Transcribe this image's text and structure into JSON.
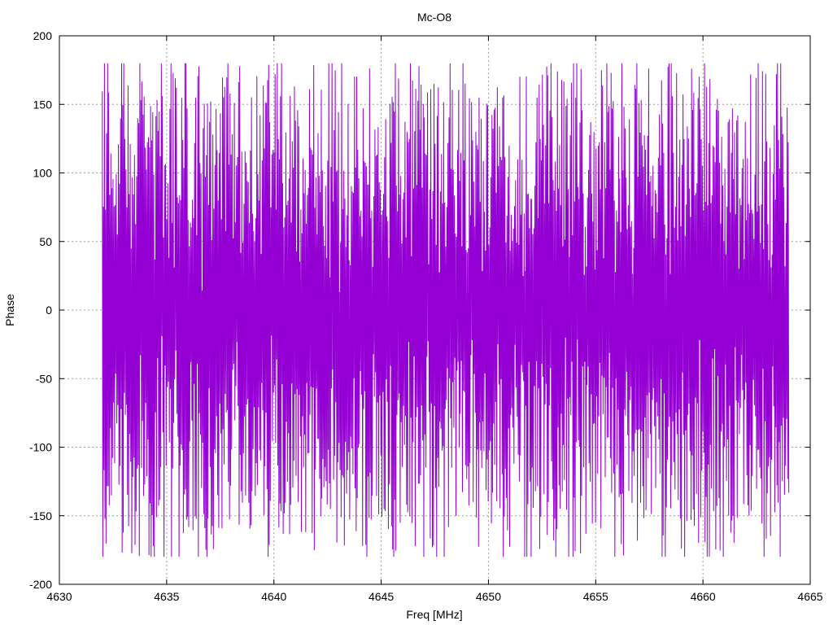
{
  "chart_data": {
    "type": "line",
    "title": "Mc-O8",
    "xlabel": "Freq [MHz]",
    "ylabel": "Phase",
    "xlim": [
      4630,
      4665
    ],
    "ylim": [
      -200,
      200
    ],
    "x_ticks": [
      4630,
      4635,
      4640,
      4645,
      4650,
      4655,
      4660,
      4665
    ],
    "y_ticks": [
      -200,
      -150,
      -100,
      -50,
      0,
      50,
      100,
      150,
      200
    ],
    "grid": true,
    "legend": "none",
    "series": [
      {
        "color": "#9400d3",
        "x_start": 4632.0,
        "x_end": 4664.0,
        "point_count": 1280,
        "values_range": [
          -180,
          180
        ]
      }
    ]
  }
}
